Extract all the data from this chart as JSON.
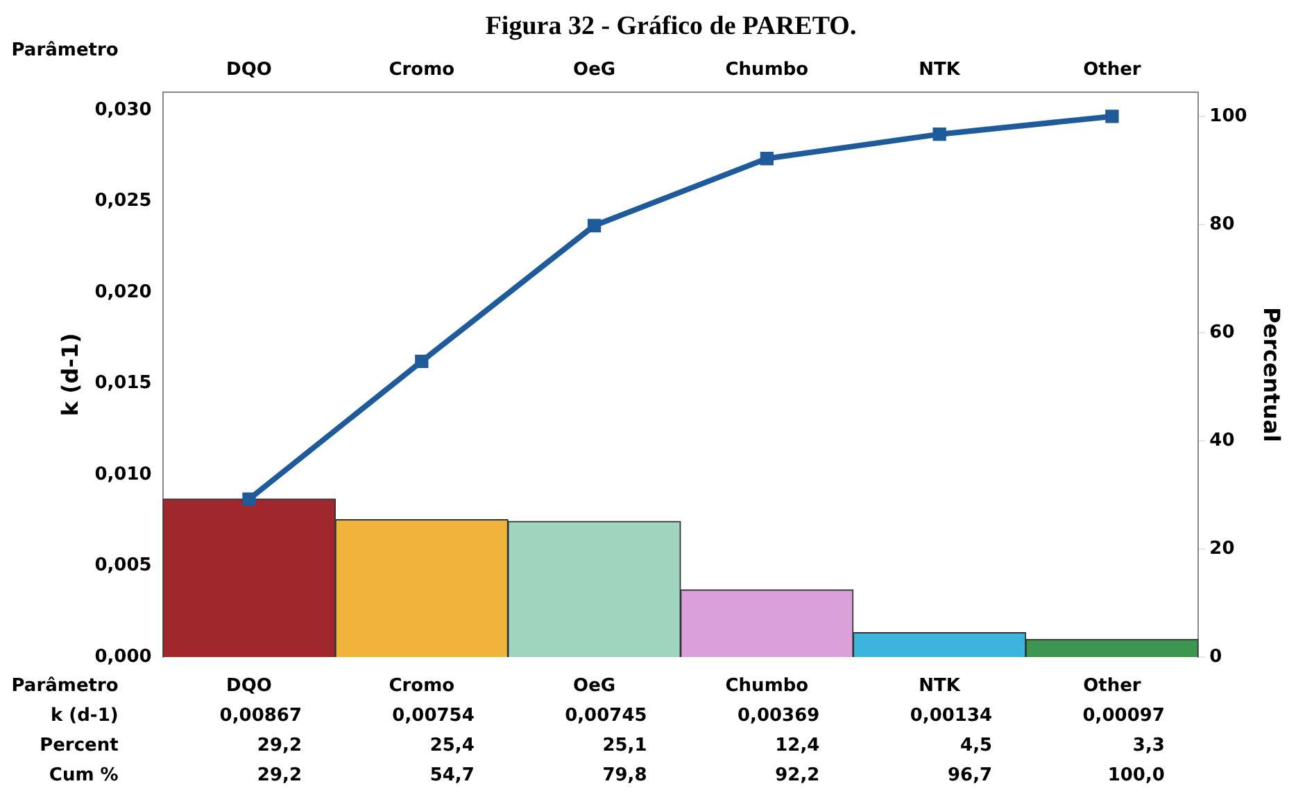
{
  "chart_data": {
    "type": "bar",
    "title": "Figura 32 - Gráfico de PARETO.",
    "xlabel": "Parâmetro",
    "ylabel": "k (d-1)",
    "y2label": "Percentual",
    "categories": [
      "DQO",
      "Cromo",
      "OeG",
      "Chumbo",
      "NTK",
      "Other"
    ],
    "series": [
      {
        "colors": [
          "#a0282d",
          "#f0b43c",
          "#9fd4c0",
          "#d9a0d9",
          "#3cb4dc",
          "#3c9650"
        ],
        "values": [
          0.00867,
          0.00754,
          0.00745,
          0.00369,
          0.00134,
          0.00097
        ],
        "value_labels": [
          "0,00867",
          "0,00754",
          "0,00745",
          "0,00369",
          "0,00134",
          "0,00097"
        ]
      },
      {
        "type": "line",
        "axis": "y2",
        "color": "#1f5a9a",
        "values": [
          29.2,
          54.7,
          79.8,
          92.2,
          96.7,
          100.0
        ],
        "value_labels": [
          "29,2",
          "54,7",
          "79,8",
          "92,2",
          "96,7",
          "100,0"
        ]
      }
    ],
    "annotations": [
      "Percent",
      "29,2",
      "25,4",
      "25,1",
      "12,4",
      "4,5",
      "3,3",
      "Cum %"
    ],
    "ylim": [
      0,
      0.031
    ],
    "yticks": [
      {
        "value": 0,
        "label": "0,000"
      },
      {
        "value": 0.005,
        "label": "0,005"
      },
      {
        "value": 0.01,
        "label": "0,010"
      },
      {
        "value": 0.015,
        "label": "0,015"
      },
      {
        "value": 0.02,
        "label": "0,020"
      },
      {
        "value": 0.025,
        "label": "0,025"
      },
      {
        "value": 0.03,
        "label": "0,030"
      }
    ],
    "y2lim": [
      0,
      104.5
    ],
    "y2ticks": [
      0,
      20,
      40,
      60,
      80,
      100
    ],
    "marker": "square",
    "line_style": "solid",
    "grid": false,
    "legend": false
  }
}
